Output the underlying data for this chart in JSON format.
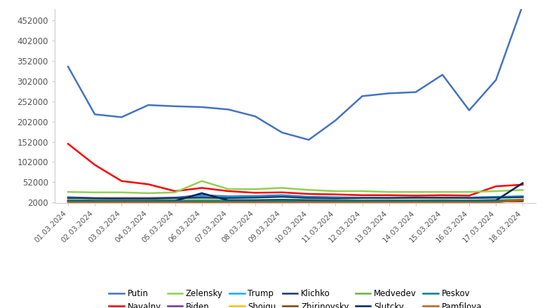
{
  "dates": [
    "01.03.2024",
    "02.03.2024",
    "03.03.2024",
    "04.03.2024",
    "05.03.2024",
    "06.03.2024",
    "07.03.2024",
    "08.03.2024",
    "09.03.2024",
    "10.03.2024",
    "11.03.2024",
    "12.03.2024",
    "13.03.2024",
    "14.03.2024",
    "15.03.2024",
    "16.03.2024",
    "17.03.2024",
    "18.03.2024"
  ],
  "series_order": [
    "Putin",
    "Navalny",
    "Zelensky",
    "Biden",
    "Trump",
    "Shoigu",
    "Klichko",
    "Zhirinovsky",
    "Medvedev",
    "Slutcky",
    "Peskov",
    "Pamfilova"
  ],
  "series": {
    "Putin": [
      338000,
      220000,
      213000,
      243000,
      240000,
      238000,
      232000,
      215000,
      175000,
      157000,
      205000,
      265000,
      272000,
      275000,
      318000,
      230000,
      305000,
      490000
    ],
    "Navalny": [
      147000,
      95000,
      55000,
      47000,
      30000,
      38000,
      30000,
      26000,
      27000,
      23000,
      22000,
      20000,
      20000,
      19000,
      20000,
      19000,
      42000,
      46000
    ],
    "Zelensky": [
      28000,
      27000,
      27000,
      25000,
      27000,
      55000,
      35000,
      35000,
      38000,
      33000,
      30000,
      30000,
      28000,
      28000,
      28000,
      28000,
      30000,
      33000
    ],
    "Biden": [
      15000,
      13000,
      13000,
      13000,
      14000,
      20000,
      17000,
      18000,
      20000,
      16000,
      15000,
      14000,
      14000,
      14000,
      14000,
      14000,
      15000,
      17000
    ],
    "Trump": [
      14000,
      12000,
      11000,
      11000,
      13000,
      18000,
      16000,
      17000,
      19000,
      15000,
      14000,
      14000,
      14000,
      14000,
      14000,
      14000,
      16000,
      17000
    ],
    "Shoigu": [
      3000,
      2000,
      2000,
      2000,
      2000,
      2000,
      2000,
      2000,
      3000,
      3000,
      3000,
      3000,
      3000,
      3000,
      3000,
      3000,
      3000,
      8000
    ],
    "Klichko": [
      13000,
      12000,
      11000,
      11000,
      13000,
      14000,
      13000,
      14000,
      16000,
      13000,
      12000,
      13000,
      13000,
      14000,
      14000,
      13000,
      14000,
      15000
    ],
    "Zhirinovsky": [
      5000,
      4000,
      4000,
      4000,
      4000,
      6000,
      4000,
      5000,
      5000,
      4000,
      4000,
      4000,
      4000,
      4000,
      4000,
      4000,
      4500,
      5000
    ],
    "Medvedev": [
      8000,
      7000,
      7000,
      7000,
      8000,
      8000,
      8000,
      8000,
      9000,
      8000,
      7000,
      7000,
      7500,
      7500,
      8000,
      7000,
      8000,
      9000
    ],
    "Slutcky": [
      6000,
      5000,
      5000,
      5000,
      6000,
      25000,
      7000,
      7000,
      8000,
      7000,
      6000,
      6000,
      6000,
      6000,
      6000,
      6000,
      7000,
      50000
    ],
    "Peskov": [
      5000,
      4000,
      4000,
      4000,
      5000,
      5000,
      5000,
      5000,
      6000,
      5000,
      5000,
      5000,
      5000,
      5000,
      5000,
      5000,
      5500,
      8000
    ],
    "Pamfilova": [
      2000,
      2000,
      2000,
      2000,
      2000,
      2000,
      2000,
      2000,
      2000,
      2000,
      2000,
      2000,
      2000,
      2000,
      2000,
      2000,
      2000,
      9000
    ]
  },
  "colors": {
    "Putin": "#4472C4",
    "Navalny": "#FF0000",
    "Zelensky": "#92D050",
    "Biden": "#7030A0",
    "Trump": "#00B0F0",
    "Shoigu": "#FFC000",
    "Klichko": "#1F3864",
    "Zhirinovsky": "#7B3F00",
    "Medvedev": "#70AD47",
    "Slutcky": "#002060",
    "Peskov": "#008080",
    "Pamfilova": "#C55A11"
  },
  "ylim": [
    0,
    480000
  ],
  "yticks": [
    2000,
    52000,
    102000,
    152000,
    202000,
    252000,
    302000,
    352000,
    402000,
    452000
  ],
  "ytick_labels": [
    "2000",
    "52000",
    "102000",
    "152000",
    "202000",
    "252000",
    "302000",
    "352000",
    "402000",
    "452000"
  ],
  "background_color": "#ffffff"
}
